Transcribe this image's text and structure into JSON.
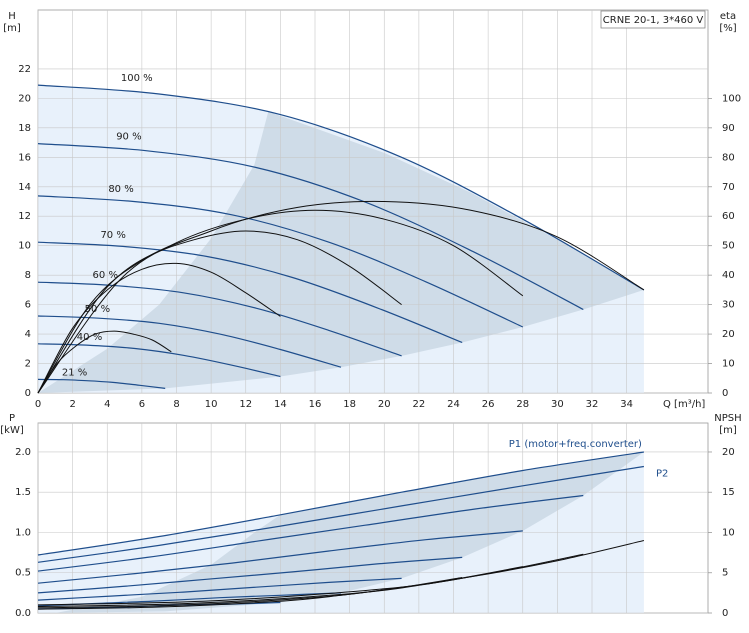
{
  "chart_data": [
    {
      "type": "line",
      "title": "CRNE 20-1, 3*460 V",
      "y_label": [
        "H",
        "[m]"
      ],
      "y2_label": [
        "eta",
        "[%]"
      ],
      "x_label": "Q [m³/h]",
      "xlim": [
        0,
        38.7
      ],
      "xticks": [
        0,
        2,
        4,
        6,
        8,
        10,
        12,
        14,
        16,
        18,
        20,
        22,
        24,
        26,
        28,
        30,
        32,
        34
      ],
      "ylim": [
        0,
        26
      ],
      "yticks": [
        0,
        2,
        4,
        6,
        8,
        10,
        12,
        14,
        16,
        18,
        20,
        22
      ],
      "y2lim": [
        0,
        130
      ],
      "y2ticks": [
        0,
        10,
        20,
        30,
        40,
        50,
        60,
        70,
        80,
        90,
        100
      ],
      "grid": true,
      "regions": [
        {
          "color": "#cfdce8",
          "x": [
            0,
            4,
            7,
            10,
            12.5,
            13.3,
            15,
            20,
            25,
            30,
            35,
            31.5,
            28,
            24.5,
            21,
            17.5,
            14,
            7.35,
            0
          ],
          "values": [
            0,
            3,
            6,
            10.5,
            15.5,
            19.1,
            18.4,
            16.3,
            13.6,
            10.4,
            7.0,
            5.67,
            4.48,
            3.43,
            2.52,
            1.75,
            1.12,
            0.31,
            0
          ]
        }
      ],
      "series": [
        {
          "name": "100 %",
          "color": "#1f4e8c",
          "fill": "#e8f1fb",
          "x": [
            0,
            7,
            14,
            21,
            28,
            35
          ],
          "values": [
            20.9,
            20.3,
            18.9,
            16.0,
            11.8,
            7.0
          ]
        },
        {
          "name": "90 %",
          "color": "#1f4e8c",
          "x": [
            0,
            6.3,
            12.6,
            18.9,
            25.2,
            31.5
          ],
          "values": [
            16.93,
            16.44,
            15.31,
            12.96,
            9.56,
            5.67
          ]
        },
        {
          "name": "80 %",
          "color": "#1f4e8c",
          "x": [
            0,
            5.6,
            11.2,
            16.8,
            22.4,
            28
          ],
          "values": [
            13.38,
            12.99,
            12.1,
            10.24,
            7.55,
            4.48
          ]
        },
        {
          "name": "70 %",
          "color": "#1f4e8c",
          "x": [
            0,
            4.9,
            9.8,
            14.7,
            19.6,
            24.5
          ],
          "values": [
            10.24,
            9.95,
            9.26,
            7.84,
            5.78,
            3.43
          ]
        },
        {
          "name": "60 %",
          "color": "#1f4e8c",
          "x": [
            0,
            4.2,
            8.4,
            12.6,
            16.8,
            21
          ],
          "values": [
            7.52,
            7.31,
            6.8,
            5.76,
            4.25,
            2.52
          ]
        },
        {
          "name": "50 %",
          "color": "#1f4e8c",
          "x": [
            0,
            3.5,
            7,
            10.5,
            14,
            17.5
          ],
          "values": [
            5.23,
            5.08,
            4.73,
            4.0,
            2.95,
            1.75
          ]
        },
        {
          "name": "40 %",
          "color": "#1f4e8c",
          "x": [
            0,
            2.8,
            5.6,
            8.4,
            11.2,
            14
          ],
          "values": [
            3.34,
            3.25,
            3.02,
            2.56,
            1.89,
            1.12
          ]
        },
        {
          "name": "21 %",
          "color": "#1f4e8c",
          "x": [
            0,
            1.47,
            2.94,
            4.41,
            5.88,
            7.35
          ],
          "values": [
            0.92,
            0.9,
            0.83,
            0.71,
            0.52,
            0.31
          ]
        },
        {
          "color": "#111111",
          "axis": "y2",
          "x": [
            0,
            5,
            10,
            15,
            20,
            25,
            30,
            35
          ],
          "values": [
            0,
            40,
            55,
            63,
            65,
            62,
            53,
            35
          ]
        },
        {
          "color": "#111111",
          "axis": "y2",
          "x": [
            0,
            4,
            8,
            12,
            16,
            20,
            24,
            28
          ],
          "values": [
            0,
            36,
            51,
            59,
            62,
            59,
            50,
            33
          ]
        },
        {
          "color": "#111111",
          "axis": "y2",
          "x": [
            0,
            3,
            6,
            9,
            12,
            15,
            18,
            21
          ],
          "values": [
            0,
            30,
            45,
            52,
            55,
            52,
            43,
            30
          ]
        },
        {
          "color": "#111111",
          "axis": "y2",
          "x": [
            0,
            2,
            4,
            6,
            8,
            10,
            12,
            14
          ],
          "values": [
            0,
            22,
            35,
            42,
            44,
            41,
            34,
            26
          ]
        },
        {
          "color": "#111111",
          "axis": "y2",
          "x": [
            0,
            1.1,
            2.2,
            3.3,
            4.4,
            5.5,
            6.6,
            7.7
          ],
          "values": [
            0,
            10,
            16,
            20,
            21,
            20,
            18,
            14
          ]
        }
      ]
    },
    {
      "type": "line",
      "y_label": [
        "P",
        "[kW]"
      ],
      "y2_label": [
        "NPSH",
        "[m]"
      ],
      "ylim": [
        0,
        2.36
      ],
      "yticks": [
        {
          "value": 0,
          "label": "0.0"
        },
        {
          "value": 0.5,
          "label": "0.5"
        },
        {
          "value": 1,
          "label": "1.0"
        },
        {
          "value": 1.5,
          "label": "1.5"
        },
        {
          "value": 2,
          "label": "2.0"
        }
      ],
      "y2lim": [
        0,
        23.6
      ],
      "y2ticks": [
        0,
        5,
        10,
        15,
        20
      ],
      "grid": true,
      "regions": [
        {
          "color": "#cfdce8",
          "x": [
            1,
            6,
            10,
            12.5,
            14,
            21,
            28,
            35,
            31.5,
            28,
            24.5,
            21,
            17.5,
            14,
            7.35,
            0
          ],
          "values": [
            0,
            0.2,
            0.6,
            1.0,
            1.22,
            1.5,
            1.77,
            2.0,
            1.46,
            1.02,
            0.69,
            0.43,
            0.25,
            0.13,
            0.02,
            0
          ]
        }
      ],
      "series": [
        {
          "name": "P1 (motor+freq.converter)",
          "color": "#1f4e8c",
          "fill": "#e8f1fb",
          "x": [
            0,
            7,
            14,
            21,
            28,
            35
          ],
          "values": [
            0.72,
            0.95,
            1.22,
            1.5,
            1.77,
            2.0
          ]
        },
        {
          "name": "P2",
          "color": "#1f4e8c",
          "x": [
            0,
            7,
            14,
            21,
            28,
            35
          ],
          "values": [
            0.63,
            0.84,
            1.08,
            1.33,
            1.58,
            1.82
          ]
        },
        {
          "color": "#1f4e8c",
          "x": [
            0,
            6.3,
            12.6,
            18.9,
            25.2,
            31.5
          ],
          "values": [
            0.52,
            0.69,
            0.89,
            1.09,
            1.29,
            1.46
          ]
        },
        {
          "color": "#1f4e8c",
          "x": [
            0,
            5.6,
            11.2,
            16.8,
            22.4,
            28
          ],
          "values": [
            0.37,
            0.49,
            0.62,
            0.77,
            0.91,
            1.02
          ]
        },
        {
          "color": "#1f4e8c",
          "x": [
            0,
            4.9,
            9.8,
            14.7,
            19.6,
            24.5
          ],
          "values": [
            0.25,
            0.33,
            0.42,
            0.51,
            0.61,
            0.69
          ]
        },
        {
          "color": "#1f4e8c",
          "x": [
            0,
            4.2,
            8.4,
            12.6,
            16.8,
            21
          ],
          "values": [
            0.16,
            0.21,
            0.26,
            0.32,
            0.38,
            0.43
          ]
        },
        {
          "color": "#1f4e8c",
          "x": [
            0,
            3.5,
            7,
            10.5,
            14,
            17.5
          ],
          "values": [
            0.09,
            0.12,
            0.15,
            0.19,
            0.22,
            0.25
          ]
        },
        {
          "color": "#1f4e8c",
          "x": [
            0,
            2.8,
            5.6,
            8.4,
            11.2,
            14
          ],
          "values": [
            0.05,
            0.06,
            0.08,
            0.1,
            0.11,
            0.13
          ]
        },
        {
          "color": "#111111",
          "axis": "y2",
          "x": [
            0,
            10,
            20,
            25,
            30,
            35
          ],
          "values": [
            1,
            1.5,
            3,
            4.5,
            6.5,
            9
          ]
        },
        {
          "color": "#111111",
          "axis": "y2",
          "x": [
            0,
            9,
            18,
            22.5,
            27,
            31.5
          ],
          "values": [
            0.81,
            1.2,
            2.4,
            3.6,
            5.3,
            7.3
          ]
        },
        {
          "color": "#111111",
          "axis": "y2",
          "x": [
            0,
            8,
            16,
            20,
            24,
            28
          ],
          "values": [
            0.64,
            0.96,
            1.92,
            2.88,
            4.16,
            5.76
          ]
        },
        {
          "color": "#111111",
          "axis": "y2",
          "x": [
            0,
            7,
            14,
            17.5,
            21,
            24.5
          ],
          "values": [
            0.49,
            0.74,
            1.47,
            2.2,
            3.19,
            4.41
          ]
        }
      ]
    }
  ]
}
